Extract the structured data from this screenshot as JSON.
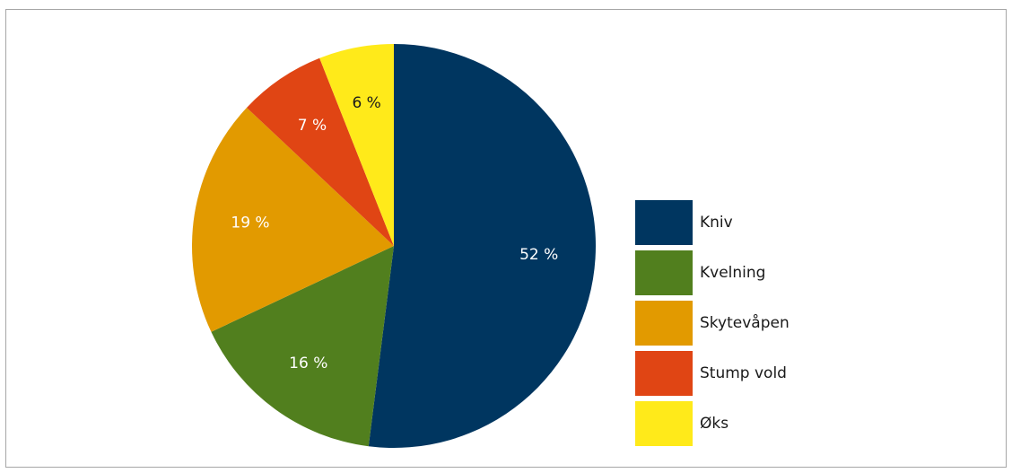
{
  "chart_data": {
    "type": "pie",
    "unit": "%",
    "start_angle_deg": 0,
    "direction": "clockwise",
    "slices": [
      {
        "label": "Kniv",
        "value": 52,
        "value_label": "52 %",
        "color": "#003660",
        "label_color": "#ffffff"
      },
      {
        "label": "Kvelning",
        "value": 16,
        "value_label": "16 %",
        "color": "#517f1e",
        "label_color": "#ffffff"
      },
      {
        "label": "Skytevåpen",
        "value": 19,
        "value_label": "19 %",
        "color": "#e29a00",
        "label_color": "#ffffff"
      },
      {
        "label": "Stump vold",
        "value": 7,
        "value_label": "7 %",
        "color": "#e04514",
        "label_color": "#ffffff"
      },
      {
        "label": "Øks",
        "value": 6,
        "value_label": "6 %",
        "color": "#ffea1a",
        "label_color": "#1a1a1a"
      }
    ],
    "legend": {
      "position": "right",
      "items": [
        {
          "label": "Kniv",
          "color": "#003660"
        },
        {
          "label": "Kvelning",
          "color": "#517f1e"
        },
        {
          "label": "Skytevåpen",
          "color": "#e29a00"
        },
        {
          "label": "Stump vold",
          "color": "#e04514"
        },
        {
          "label": "Øks",
          "color": "#ffea1a"
        }
      ]
    }
  }
}
